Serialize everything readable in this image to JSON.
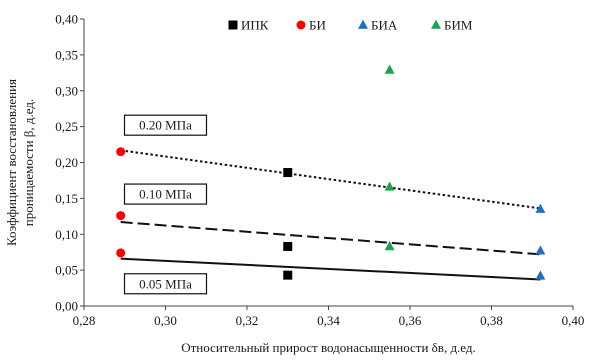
{
  "chart_data": {
    "type": "scatter",
    "xlabel": "Относительный прирост водонасыщенности δв, д.ед.",
    "ylabel_lines": [
      "Коэффициент восстановления",
      "проницаемости β, д.ед."
    ],
    "xlim": [
      0.28,
      0.4
    ],
    "ylim": [
      0.0,
      0.4
    ],
    "x_ticks": [
      "0,28",
      "0,30",
      "0,32",
      "0,34",
      "0,36",
      "0,38",
      "0,40"
    ],
    "y_ticks": [
      "0,00",
      "0,05",
      "0,10",
      "0,15",
      "0,20",
      "0,25",
      "0,30",
      "0,35",
      "0,40"
    ],
    "grid": false,
    "legend_position": "top",
    "series": [
      {
        "name": "ИПК",
        "marker": "square",
        "color": "#000000",
        "points": [
          [
            0.33,
            0.186
          ],
          [
            0.33,
            0.083
          ],
          [
            0.33,
            0.043
          ]
        ]
      },
      {
        "name": "БИ",
        "marker": "circle",
        "color": "#ff0000",
        "points": [
          [
            0.289,
            0.215
          ],
          [
            0.289,
            0.126
          ],
          [
            0.289,
            0.074
          ]
        ]
      },
      {
        "name": "БИА",
        "marker": "triangle",
        "color": "#1f6fc5",
        "points": [
          [
            0.392,
            0.135
          ],
          [
            0.392,
            0.077
          ],
          [
            0.392,
            0.042
          ]
        ]
      },
      {
        "name": "БИМ",
        "marker": "triangle",
        "color": "#1aa34a",
        "points": [
          [
            0.355,
            0.329
          ],
          [
            0.355,
            0.166
          ],
          [
            0.355,
            0.083
          ]
        ]
      }
    ],
    "trendlines": [
      {
        "label": "0.20 МПа",
        "style": "dotted",
        "from": [
          0.289,
          0.217
        ],
        "to": [
          0.392,
          0.136
        ]
      },
      {
        "label": "0.10 МПа",
        "style": "dashed",
        "from": [
          0.289,
          0.117
        ],
        "to": [
          0.392,
          0.072
        ]
      },
      {
        "label": "0.05 МПа",
        "style": "solid",
        "from": [
          0.289,
          0.066
        ],
        "to": [
          0.392,
          0.037
        ]
      }
    ]
  }
}
